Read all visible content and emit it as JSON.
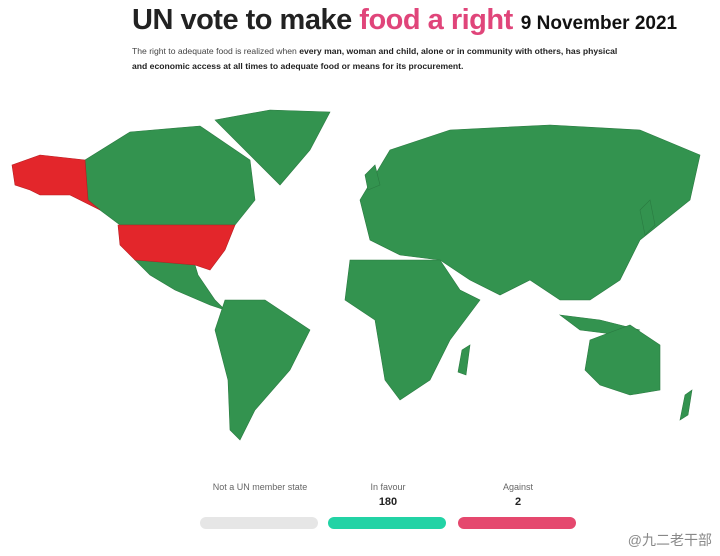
{
  "header": {
    "title_start": "UN vote to make",
    "title_highlight": "food a right",
    "date": "9 November 2021",
    "subtitle_start": "The right to adequate food is realized when ",
    "subtitle_bold": "every man, woman and child, alone or in community with others, has physical and economic access at all times to adequate food or means for its procurement."
  },
  "legend": [
    {
      "label": "Not a UN member state",
      "color": "#e6e6e6"
    },
    {
      "label": "In favour",
      "count": 180,
      "color": "#22d3a5"
    },
    {
      "label": "Against",
      "count": 2,
      "color": "#e5486e"
    }
  ],
  "watermark": "@九二老干部"
}
